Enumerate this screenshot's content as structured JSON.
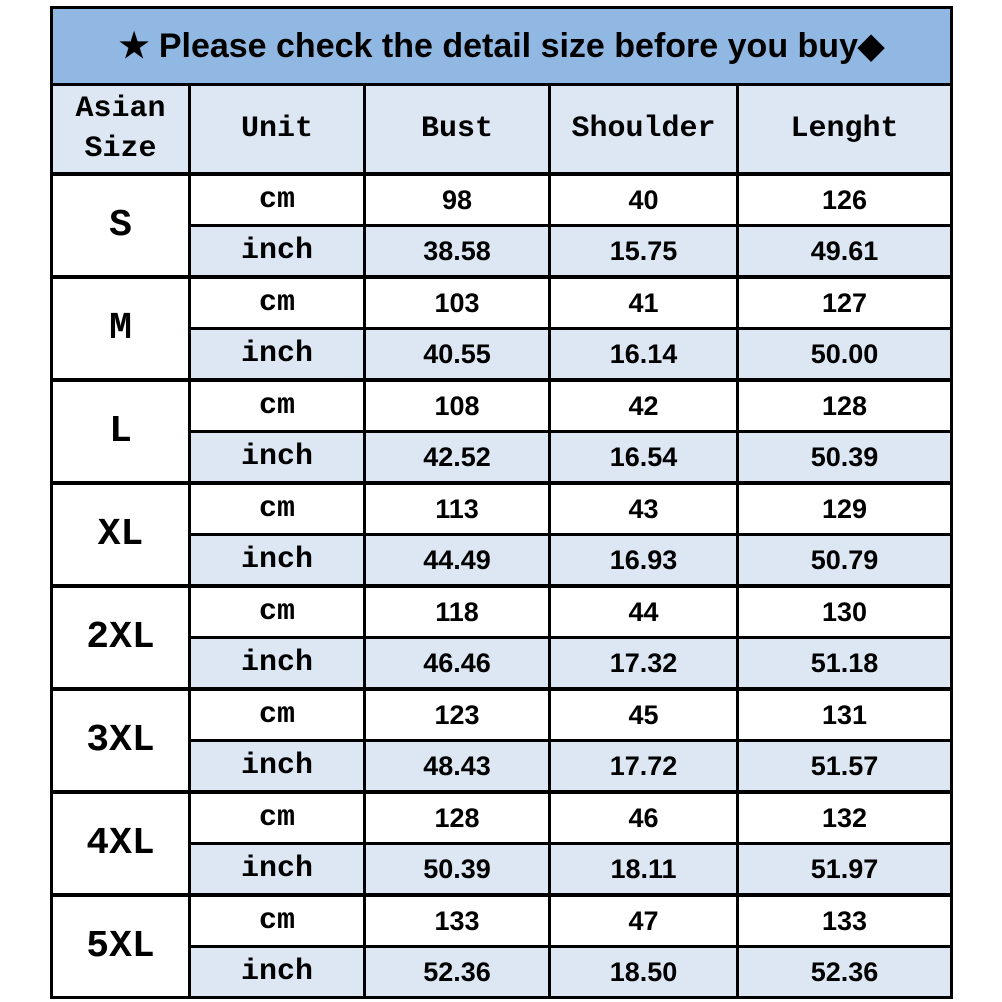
{
  "banner": {
    "text": "★ Please check the detail size before you buy◆",
    "star_icon": "black-star",
    "diamond_icon": "black-diamond"
  },
  "table": {
    "columns": [
      "Asian Size",
      "Unit",
      "Bust",
      "Shoulder",
      "Lenght"
    ],
    "unit_labels": {
      "cm": "cm",
      "inch": "inch"
    },
    "measurement_columns": [
      "Bust",
      "Shoulder",
      "Lenght"
    ],
    "sizes": [
      {
        "label": "S",
        "cm": [
          "98",
          "40",
          "126"
        ],
        "inch": [
          "38.58",
          "15.75",
          "49.61"
        ]
      },
      {
        "label": "M",
        "cm": [
          "103",
          "41",
          "127"
        ],
        "inch": [
          "40.55",
          "16.14",
          "50.00"
        ]
      },
      {
        "label": "L",
        "cm": [
          "108",
          "42",
          "128"
        ],
        "inch": [
          "42.52",
          "16.54",
          "50.39"
        ]
      },
      {
        "label": "XL",
        "cm": [
          "113",
          "43",
          "129"
        ],
        "inch": [
          "44.49",
          "16.93",
          "50.79"
        ]
      },
      {
        "label": "2XL",
        "cm": [
          "118",
          "44",
          "130"
        ],
        "inch": [
          "46.46",
          "17.32",
          "51.18"
        ]
      },
      {
        "label": "3XL",
        "cm": [
          "123",
          "45",
          "131"
        ],
        "inch": [
          "48.43",
          "17.72",
          "51.57"
        ]
      },
      {
        "label": "4XL",
        "cm": [
          "128",
          "46",
          "132"
        ],
        "inch": [
          "50.39",
          "18.11",
          "51.97"
        ]
      },
      {
        "label": "5XL",
        "cm": [
          "133",
          "47",
          "133"
        ],
        "inch": [
          "52.36",
          "18.50",
          "52.36"
        ]
      }
    ]
  },
  "colors": {
    "banner_bg": "#90B8E2",
    "header_cell_bg": "#DCE7F3",
    "inch_row_bg": "#DCE7F3",
    "cm_row_bg": "#FFFFFF",
    "border": "#000000",
    "text": "#000000"
  }
}
